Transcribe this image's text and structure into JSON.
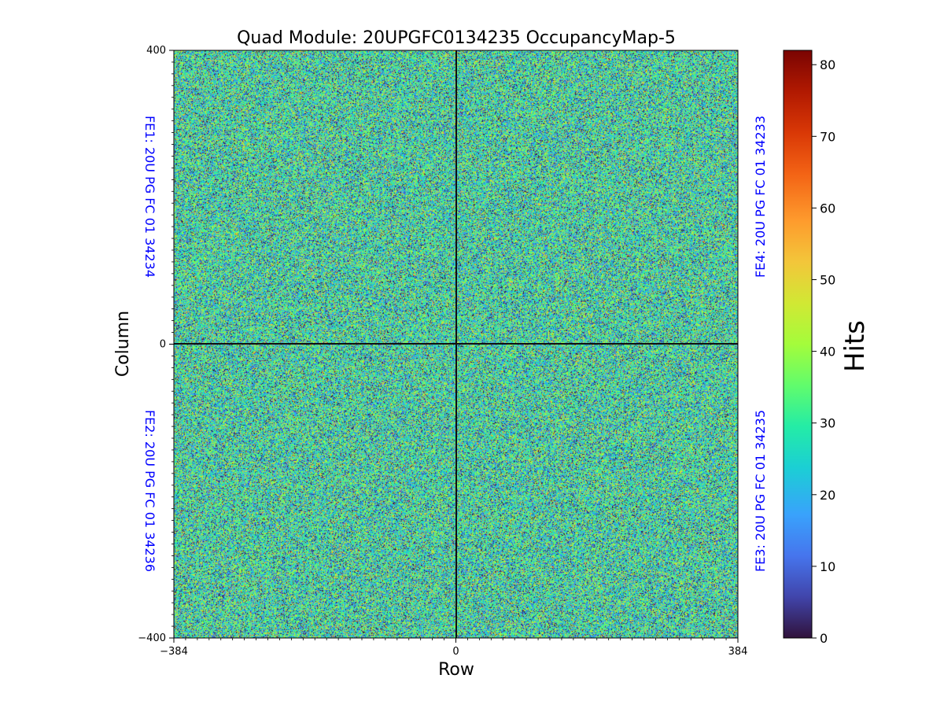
{
  "chart_data": {
    "type": "heatmap",
    "title": "Quad Module: 20UPGFC0134235 OccupancyMap-5",
    "xlabel": "Row",
    "ylabel": "Column",
    "xlim": [
      -384,
      384
    ],
    "ylim": [
      -400,
      400
    ],
    "x_ticks": [
      {
        "value": -384,
        "label": "−384"
      },
      {
        "value": 0,
        "label": "0"
      },
      {
        "value": 384,
        "label": "384"
      }
    ],
    "y_ticks": [
      {
        "value": 400,
        "label": "400"
      },
      {
        "value": 0,
        "label": "0"
      },
      {
        "value": -400,
        "label": "−400"
      }
    ],
    "colorbar": {
      "label": "Hits",
      "range": [
        0,
        82
      ],
      "colormap": "turbo",
      "ticks": [
        {
          "value": 0,
          "label": "0"
        },
        {
          "value": 10,
          "label": "10"
        },
        {
          "value": 20,
          "label": "20"
        },
        {
          "value": 30,
          "label": "30"
        },
        {
          "value": 40,
          "label": "40"
        },
        {
          "value": 50,
          "label": "50"
        },
        {
          "value": 60,
          "label": "60"
        },
        {
          "value": 70,
          "label": "70"
        },
        {
          "value": 80,
          "label": "80"
        }
      ]
    },
    "chip_labels": [
      {
        "id": "FE1",
        "text": "FE1: 20U PG FC 01 34234",
        "side": "left",
        "quadrant": "top"
      },
      {
        "id": "FE2",
        "text": "FE2: 20U PG FC 01 34236",
        "side": "left",
        "quadrant": "bottom"
      },
      {
        "id": "FE3",
        "text": "FE3: 20U PG FC 01 34235",
        "side": "right",
        "quadrant": "bottom"
      },
      {
        "id": "FE4",
        "text": "FE4: 20U PG FC 01 34233",
        "side": "right",
        "quadrant": "top"
      }
    ],
    "chip_label_color": "#0000ff",
    "occupancy_summary": {
      "typical_hits": 28,
      "spread_hits": 14,
      "dead_lines": [
        "row = 0",
        "column = 0"
      ]
    }
  }
}
